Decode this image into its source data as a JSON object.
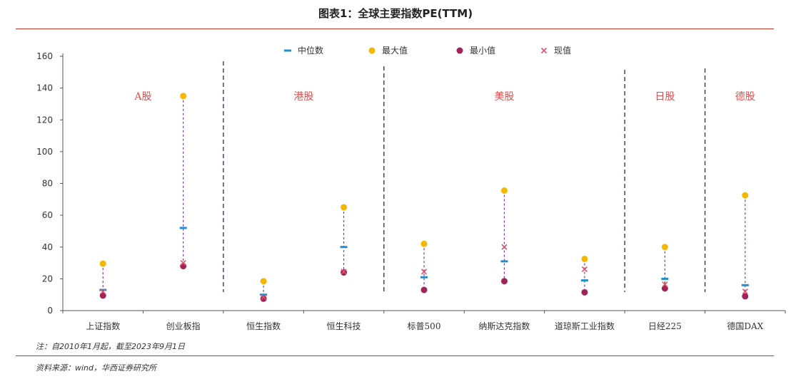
{
  "title": "图表1：全球主要指数PE(TTM)",
  "note": "注：自2010年1月起，截至2023年9月1日",
  "source": "资料来源：wind，华西证券研究所",
  "colors": {
    "median": "#1f8fd0",
    "max": "#f5b800",
    "min": "#a0245a",
    "current": "#e0506a",
    "stem": "#7d3c98",
    "divider": "#1f2d5a",
    "rule": "#c0392b",
    "region_label": "#e05050"
  },
  "chart_data": {
    "type": "scatter",
    "ylim": [
      0,
      160
    ],
    "yticks": [
      0,
      20,
      40,
      60,
      80,
      100,
      120,
      140,
      160
    ],
    "categories": [
      "上证指数",
      "创业板指",
      "恒生指数",
      "恒生科技",
      "标普500",
      "纳斯达克指数",
      "道琼斯工业指数",
      "日经225",
      "德国DAX"
    ],
    "legend": [
      "中位数",
      "最大值",
      "最小值",
      "现值"
    ],
    "series": [
      {
        "name": "中位数",
        "values": [
          13,
          52,
          10,
          40,
          21,
          31,
          19,
          20,
          16
        ]
      },
      {
        "name": "最大值",
        "values": [
          29.5,
          135,
          18.5,
          65,
          42,
          75.5,
          32.5,
          40,
          72.5
        ]
      },
      {
        "name": "最小值",
        "values": [
          9.5,
          28,
          7.5,
          24,
          13,
          18.5,
          11.5,
          14,
          9
        ]
      },
      {
        "name": "现值",
        "values": [
          12,
          30,
          8.5,
          24.5,
          24.5,
          40,
          26,
          16.5,
          12
        ]
      }
    ],
    "regions": [
      {
        "label": "A股",
        "from": 0,
        "to": 1
      },
      {
        "label": "港股",
        "from": 2,
        "to": 3
      },
      {
        "label": "美股",
        "from": 4,
        "to": 6
      },
      {
        "label": "日股",
        "from": 7,
        "to": 7
      },
      {
        "label": "德股",
        "from": 8,
        "to": 8
      }
    ]
  }
}
